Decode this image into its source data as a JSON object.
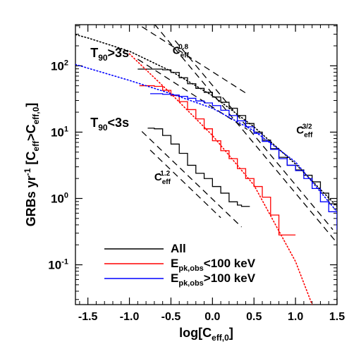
{
  "chart_data": {
    "type": "line",
    "xlabel": "log[C",
    "xlabel_sub": "eff,0",
    "xlabel_close": "]",
    "ylabel": {
      "a": "GRBs yr",
      "a_sup": "-1",
      "b": " [C",
      "b_sub": "eff",
      "c": ">C",
      "c_sub": "eff,0",
      "d": "]"
    },
    "xlim": [
      -1.65,
      1.5
    ],
    "ylog10_lim": [
      -1.6,
      2.62
    ],
    "x_ticks": [
      -1.5,
      -1.0,
      -0.5,
      0.0,
      0.5,
      1.0,
      1.5
    ],
    "x_tick_labels": [
      "-1.5",
      "-1.0",
      "-0.5",
      "0.0",
      "0.5",
      "1.0",
      "1.5"
    ],
    "y_ticks": [
      {
        "exp": -1,
        "base": "10",
        "sup": "-1"
      },
      {
        "exp": 0,
        "base": "10",
        "sup": "0"
      },
      {
        "exp": 1,
        "base": "10",
        "sup": "1"
      },
      {
        "exp": 2,
        "base": "10",
        "sup": "2"
      }
    ],
    "group_labels": [
      {
        "main": "T",
        "sub": "90",
        "rest": ">3s",
        "at": [
          -1.47,
          2.13
        ]
      },
      {
        "main": "T",
        "sub": "90",
        "rest": "<3s",
        "at": [
          -1.47,
          1.08
        ]
      }
    ],
    "slope_labels": [
      {
        "base": "C",
        "sub": "eff",
        "sup": "-0.8",
        "at": [
          -0.48,
          2.18
        ]
      },
      {
        "base": "C",
        "sub": "eff",
        "sup": "-3/2",
        "at": [
          1.01,
          0.98
        ]
      },
      {
        "base": "C",
        "sub": "eff",
        "sup": "-1.2",
        "at": [
          -0.7,
          0.27
        ]
      }
    ],
    "reference_lines": [
      {
        "slope": -0.8,
        "x": [
          -0.85,
          0.4
        ],
        "y": [
          2.59,
          1.59
        ],
        "color": "#000000"
      },
      {
        "slope": -0.8,
        "x": [
          -0.9,
          0.42
        ],
        "y": [
          2.1,
          1.04
        ],
        "color": "#000000"
      },
      {
        "slope": -1.5,
        "x": [
          -0.7,
          1.5
        ],
        "y": [
          2.63,
          -0.67
        ],
        "color": "#000000"
      },
      {
        "slope": -1.5,
        "x": [
          -0.45,
          1.45
        ],
        "y": [
          2.38,
          -0.47
        ],
        "color": "#000000"
      },
      {
        "slope": -1.2,
        "x": [
          -0.85,
          0.35
        ],
        "y": [
          1.01,
          -0.43
        ],
        "color": "#000000"
      },
      {
        "slope": -1.2,
        "x": [
          -0.75,
          0.1
        ],
        "y": [
          0.73,
          -0.29
        ],
        "color": "#000000"
      }
    ],
    "series": [
      {
        "name": "All",
        "color": "#000000",
        "style": "step",
        "x": [
          -0.9,
          -0.6,
          -0.5,
          -0.4,
          -0.3,
          -0.2,
          -0.1,
          0.0,
          0.1,
          0.2,
          0.3,
          0.4,
          0.5,
          0.6,
          0.7,
          0.8,
          0.9,
          1.0,
          1.1,
          1.2,
          1.3,
          1.4,
          1.5
        ],
        "y": [
          1.95,
          1.94,
          1.9,
          1.82,
          1.73,
          1.66,
          1.6,
          1.53,
          1.45,
          1.36,
          1.25,
          1.13,
          1.0,
          0.88,
          0.75,
          0.62,
          0.5,
          0.43,
          0.35,
          0.25,
          0.08,
          -0.08,
          -0.2
        ]
      },
      {
        "name": "",
        "color": "#000000",
        "style": "step",
        "x": [
          -0.78,
          -0.7,
          -0.6,
          -0.5,
          -0.4,
          -0.3,
          -0.2,
          -0.1,
          0.0,
          0.1,
          0.2,
          0.3,
          0.35,
          0.45
        ],
        "y": [
          1.06,
          1.05,
          0.95,
          0.82,
          0.68,
          0.5,
          0.38,
          0.3,
          0.18,
          0.08,
          -0.05,
          -0.1,
          -0.12,
          -0.12
        ]
      },
      {
        "name": "E",
        "name_sub": "pk,obs",
        "name_rest": "<100 keV",
        "color": "#ff0000",
        "style": "step",
        "x": [
          -0.88,
          -0.7,
          -0.6,
          -0.5,
          -0.4,
          -0.3,
          -0.2,
          -0.1,
          0.0,
          0.1,
          0.2,
          0.3,
          0.4,
          0.5,
          0.6,
          0.7,
          0.8,
          0.9,
          1.0
        ],
        "y": [
          1.7,
          1.69,
          1.63,
          1.55,
          1.46,
          1.34,
          1.2,
          1.05,
          0.87,
          0.72,
          0.6,
          0.45,
          0.3,
          0.18,
          0.02,
          -0.25,
          -0.55,
          -0.55,
          -0.55
        ]
      },
      {
        "name": "E",
        "name_sub": "pk,obs",
        "name_rest": ">100 keV",
        "color": "#0000ff",
        "style": "step",
        "x": [
          -0.75,
          -0.6,
          -0.5,
          -0.4,
          -0.3,
          -0.2,
          -0.1,
          0.0,
          0.1,
          0.2,
          0.3,
          0.4,
          0.5,
          0.6,
          0.7,
          0.8,
          0.9,
          1.0,
          1.1,
          1.2,
          1.3,
          1.4,
          1.5
        ],
        "y": [
          1.58,
          1.57,
          1.56,
          1.54,
          1.51,
          1.47,
          1.44,
          1.4,
          1.33,
          1.25,
          1.17,
          1.08,
          0.98,
          0.86,
          0.74,
          0.6,
          0.5,
          0.42,
          0.3,
          0.15,
          -0.05,
          -0.2,
          -0.47
        ]
      },
      {
        "name": "",
        "color": "#000000",
        "style": "dotted",
        "x": [
          -1.65,
          -1.5,
          -1.0,
          -0.5,
          0.0,
          0.5,
          1.0,
          1.5
        ],
        "y": [
          2.47,
          2.42,
          2.22,
          1.92,
          1.55,
          1.08,
          0.52,
          -0.12
        ]
      },
      {
        "name": "",
        "color": "#ff0000",
        "style": "dotted",
        "x": [
          -1.0,
          -0.5,
          0.0,
          0.5,
          1.0,
          1.2
        ],
        "y": [
          2.18,
          1.58,
          0.95,
          0.2,
          -0.95,
          -1.6
        ]
      },
      {
        "name": "",
        "color": "#0000ff",
        "style": "dotted",
        "x": [
          -1.65,
          -1.0,
          -0.5,
          0.0,
          0.5,
          1.0,
          1.5
        ],
        "y": [
          2.02,
          1.78,
          1.58,
          1.36,
          1.02,
          0.55,
          -0.2
        ]
      }
    ],
    "legend": {
      "placement": "bottom-left",
      "entries": [
        {
          "base": "All",
          "sub": "",
          "rest": "",
          "color": "#000000"
        },
        {
          "base": "E",
          "sub": "pk,obs",
          "rest": "<100 keV",
          "color": "#ff0000"
        },
        {
          "base": "E",
          "sub": "pk,obs",
          "rest": ">100 keV",
          "color": "#0000ff"
        }
      ]
    },
    "grid": false
  }
}
